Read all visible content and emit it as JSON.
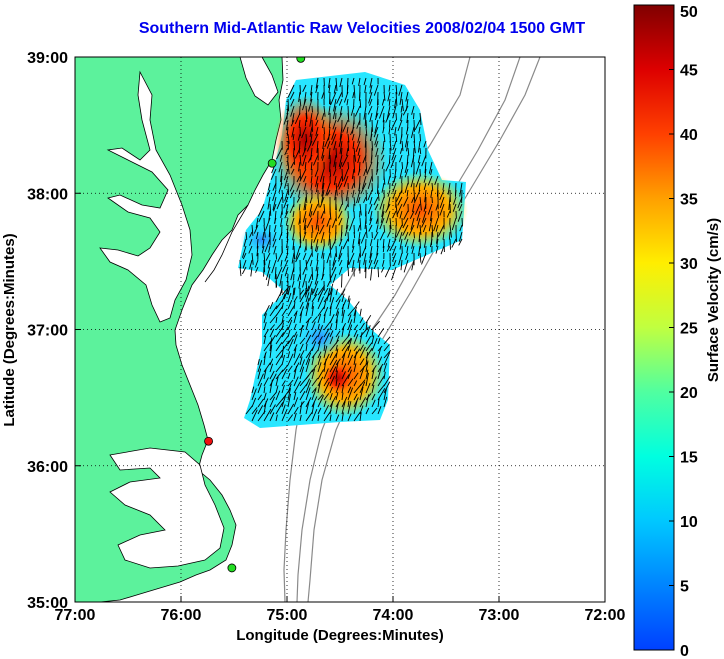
{
  "title": "Southern Mid-Atlantic Raw Velocities 2008/02/04 1500 GMT",
  "chart_data": {
    "type": "heatmap",
    "title": "Southern Mid-Atlantic Raw Velocities 2008/02/04 1500 GMT",
    "xlabel": "Longitude (Degrees:Minutes)",
    "ylabel": "Latitude (Degrees:Minutes)",
    "x_ticks": [
      "77:00",
      "76:00",
      "75:00",
      "74:00",
      "73:00",
      "72:00"
    ],
    "y_ticks": [
      "39:00",
      "38:00",
      "37:00",
      "36:00",
      "35:00"
    ],
    "xlim": [
      -77,
      -72
    ],
    "ylim": [
      35,
      39
    ],
    "grid": true,
    "colorbar": {
      "label": "Surface Velocity (cm/s)",
      "min": 0,
      "max": 50,
      "ticks": [
        "0",
        "5",
        "10",
        "15",
        "20",
        "25",
        "30",
        "35",
        "40",
        "45",
        "50"
      ]
    },
    "colors": {
      "land": "#5cf29c",
      "title": "#0000ee",
      "site_active": "#22dd22",
      "site_alert": "#ee1111"
    },
    "hf_radar_sites": [
      {
        "lon": -74.87,
        "lat": 38.99,
        "status": "active"
      },
      {
        "lon": -75.14,
        "lat": 38.22,
        "status": "active"
      },
      {
        "lon": -75.74,
        "lat": 36.18,
        "status": "alert"
      },
      {
        "lon": -75.52,
        "lat": 35.25,
        "status": "active"
      }
    ]
  }
}
